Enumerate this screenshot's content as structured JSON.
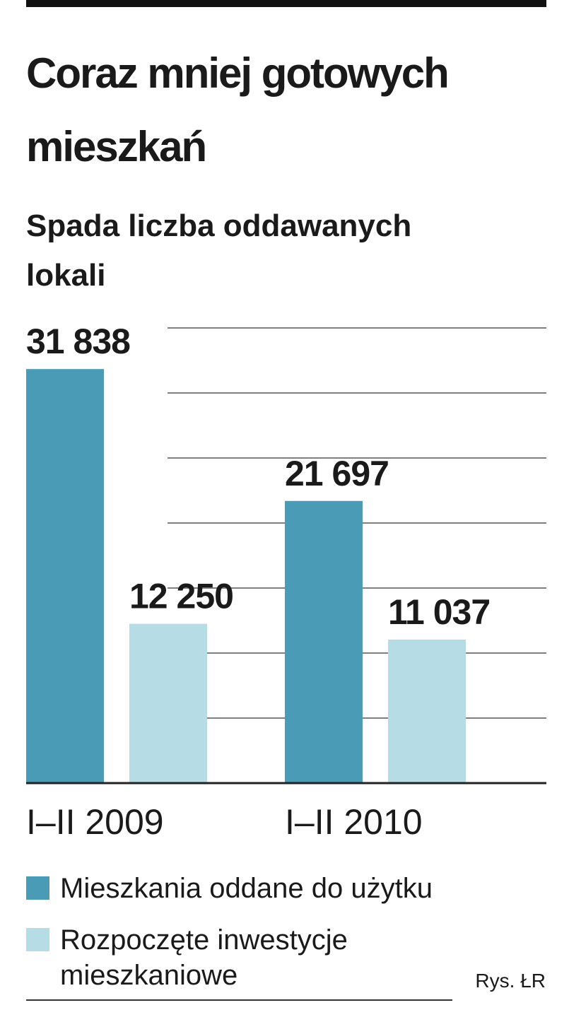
{
  "chart_data": {
    "type": "bar",
    "title": "Coraz mniej gotowych mieszkań",
    "subtitle": "Spada liczba oddawanych lokali",
    "categories": [
      "I–II 2009",
      "I–II 2010"
    ],
    "series": [
      {
        "name": "Mieszkania oddane do użytku",
        "color": "#4a9bb5",
        "values": [
          31838,
          21697
        ],
        "value_labels": [
          "31 838",
          "21 697"
        ]
      },
      {
        "name": "Rozpoczęte inwestycje mieszkaniowe",
        "color": "#b6dde6",
        "values": [
          12250,
          11037
        ],
        "value_labels": [
          "12 250",
          "11 037"
        ]
      }
    ],
    "ylim": [
      0,
      35000
    ],
    "yticks": [
      0,
      5000,
      10000,
      15000,
      20000,
      25000,
      30000,
      35000
    ],
    "grid": true,
    "source": "Rys. ŁR"
  }
}
